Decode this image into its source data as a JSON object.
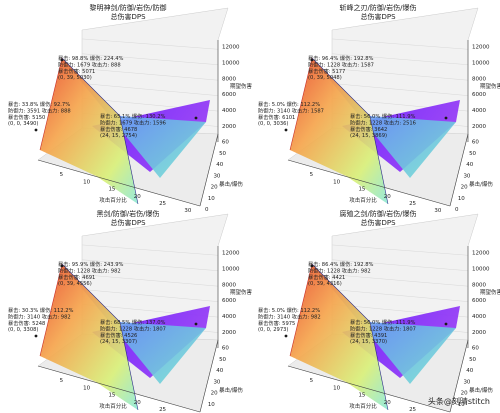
{
  "watermark": "头条@刻晴stitch",
  "chart_data": [
    {
      "type": "surface3d",
      "title_line1": "黎明神剑/防御/岩伤/防御",
      "title_line2": "总伤害DPS",
      "xlabel": "攻击百分比",
      "ylabel": "暴击/爆伤",
      "zlabel": "期望伤害",
      "xticks": [
        5,
        10,
        15,
        20,
        25,
        30
      ],
      "yticks": [
        0,
        10,
        20,
        30,
        40,
        50,
        60
      ],
      "zticks": [
        2000,
        4000,
        6000,
        8000,
        10000,
        12000
      ],
      "annotations": [
        {
          "lines": [
            "暴击:  98.8%   爆伤:  224.4%",
            "防御力:  1679  攻击力:  888",
            "暴击伤害:  5071",
            "(0, 39, 5030)"
          ]
        },
        {
          "lines": [
            "暴击:  33.8%   爆伤:  92.7%",
            "防御力:  3591  攻击力:  888",
            "暴击伤害:  5150",
            "(0, 0, 3490)"
          ]
        },
        {
          "lines": [
            "暴击:  65.1%   爆伤:  130.2%",
            "防御力:  1679  攻击力:  1596",
            "暴击伤害:  4678",
            "(24, 15, 2754)"
          ]
        }
      ]
    },
    {
      "type": "surface3d",
      "title_line1": "斩峰之刃/防御/岩伤/爆伤",
      "title_line2": "总伤害DPS",
      "xlabel": "攻击百分比",
      "ylabel": "暴击/爆伤",
      "zlabel": "期望伤害",
      "xticks": [
        5,
        10,
        15,
        20,
        25,
        30
      ],
      "yticks": [
        0,
        10,
        20,
        30,
        40,
        50,
        60
      ],
      "zticks": [
        2000,
        4000,
        6000,
        8000,
        10000,
        12000
      ],
      "annotations": [
        {
          "lines": [
            "暴击:  96.4%   爆伤:  192.8%",
            "防御力:  1228  攻击力:  1587",
            "暴击伤害:  5177",
            "(0, 39, 5048)"
          ]
        },
        {
          "lines": [
            "暴击:  5.0%   爆伤:  112.2%",
            "防御力:  3140  攻击力:  1587",
            "暴击伤害:  6101",
            "(0, 0, 3036)"
          ]
        },
        {
          "lines": [
            "暴击:  56.0%   爆伤:  111.9%",
            "防御力:  1228  攻击力:  2516",
            "暴击伤害:  3642",
            "(24, 15, 3869)"
          ]
        }
      ]
    },
    {
      "type": "surface3d",
      "title_line1": "黑剑/防御/岩伤/爆伤",
      "title_line2": "总伤害DPS",
      "xlabel": "攻击百分比",
      "ylabel": "暴击/爆伤",
      "zlabel": "期望伤害",
      "xticks": [
        5,
        10,
        15,
        20,
        25,
        30
      ],
      "yticks": [
        0,
        10,
        20,
        30,
        40,
        50,
        60
      ],
      "zticks": [
        2000,
        4000,
        6000,
        8000,
        10000,
        12000
      ],
      "annotations": [
        {
          "lines": [
            "暴击:  95.9%   爆伤:  243.9%",
            "防御力:  1228  攻击力:  982",
            "暴击伤害:  4691",
            "(0, 39, 4556)"
          ]
        },
        {
          "lines": [
            "暴击:  30.3%   爆伤:  112.2%",
            "防御力:  3140  攻击力:  982",
            "暴击伤害:  5248",
            "(0, 0, 3308)"
          ]
        },
        {
          "lines": [
            "暴击:  68.5%   爆伤:  137.0%",
            "防御力:  1228  攻击力:  1807",
            "暴击伤害:  4526",
            "(24, 15, 3307)"
          ]
        }
      ]
    },
    {
      "type": "surface3d",
      "title_line1": "腐殖之剑/防御/岩伤/爆伤",
      "title_line2": "总伤害DPS",
      "xlabel": "攻击百分比",
      "ylabel": "暴击/爆伤",
      "zlabel": "期望伤害",
      "xticks": [
        5,
        10,
        15,
        20,
        25,
        30
      ],
      "yticks": [
        0,
        10,
        20,
        30,
        40,
        50,
        60
      ],
      "zticks": [
        2000,
        4000,
        6000,
        8000,
        10000,
        12000
      ],
      "annotations": [
        {
          "lines": [
            "暴击:  86.4%   爆伤:  192.8%",
            "防御力:  1228  攻击力:  982",
            "暴击伤害:  4421",
            "(0, 39, 4316)"
          ]
        },
        {
          "lines": [
            "暴击:  5.0%   爆伤:  112.2%",
            "防御力:  3140  攻击力:  982",
            "暴击伤害:  5975",
            "(0, 0, 2973)"
          ]
        },
        {
          "lines": [
            "暴击:  56.0%   爆伤:  111.9%",
            "防御力:  1228  攻击力:  1807",
            "暴击伤害:  4391",
            "(24, 15, 3370)"
          ]
        }
      ]
    }
  ]
}
